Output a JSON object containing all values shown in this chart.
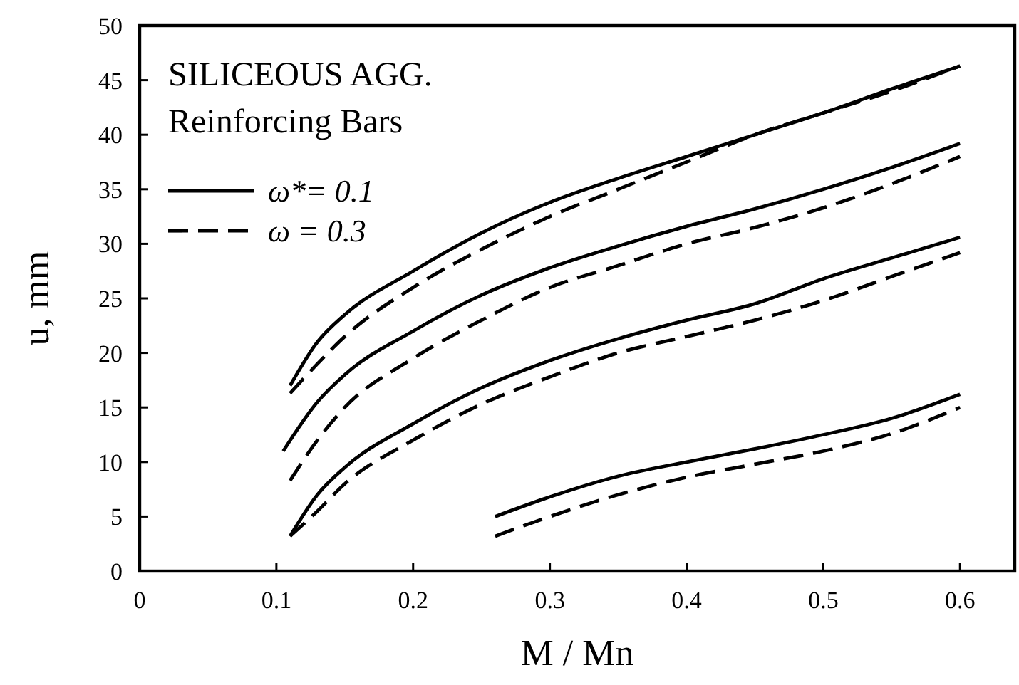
{
  "chart_data": {
    "type": "line",
    "xlabel": "M / Mn",
    "ylabel": "u, mm",
    "xlim": [
      0,
      0.64
    ],
    "ylim": [
      0,
      50
    ],
    "xticks": [
      0,
      0.1,
      0.2,
      0.3,
      0.4,
      0.5,
      0.6
    ],
    "yticks": [
      0,
      5,
      10,
      15,
      20,
      25,
      30,
      35,
      40,
      45,
      50
    ],
    "grid": false,
    "legend": "top left",
    "annotations": [
      "SILICEOUS AGG.",
      "Reinforcing Bars"
    ],
    "series": [
      {
        "name": "ω*= 0.1",
        "color": "#000000",
        "line_style": "solid",
        "x": [
          0.11,
          0.13,
          0.15,
          0.2,
          0.25,
          0.3,
          0.35,
          0.4,
          0.45,
          0.5,
          0.55,
          0.6
        ],
        "values": [
          17,
          21,
          23.5,
          27.5,
          31,
          33.8,
          36,
          38,
          40,
          42,
          44.2,
          46.3
        ]
      },
      {
        "name": "ω = 0.3",
        "color": "#000000",
        "line_style": "dashed",
        "x": [
          0.11,
          0.13,
          0.15,
          0.2,
          0.25,
          0.3,
          0.35,
          0.4,
          0.45,
          0.5,
          0.55,
          0.6
        ],
        "values": [
          16.3,
          19,
          21.5,
          26,
          29.5,
          32.5,
          35,
          37.5,
          40,
          42,
          44,
          46.3
        ]
      },
      {
        "color": "#000000",
        "line_style": "solid",
        "x": [
          0.105,
          0.13,
          0.15,
          0.2,
          0.25,
          0.3,
          0.35,
          0.4,
          0.45,
          0.5,
          0.55,
          0.6
        ],
        "values": [
          11,
          15.5,
          18,
          22,
          25.3,
          27.8,
          29.8,
          31.6,
          33.2,
          35,
          37,
          39.2
        ]
      },
      {
        "color": "#000000",
        "line_style": "dashed",
        "x": [
          0.11,
          0.13,
          0.15,
          0.2,
          0.25,
          0.3,
          0.35,
          0.4,
          0.45,
          0.5,
          0.55,
          0.6
        ],
        "values": [
          8.3,
          12,
          15,
          19.5,
          23,
          26,
          28,
          30,
          31.5,
          33.3,
          35.5,
          38
        ]
      },
      {
        "color": "#000000",
        "line_style": "solid",
        "x": [
          0.11,
          0.13,
          0.15,
          0.2,
          0.25,
          0.3,
          0.35,
          0.4,
          0.45,
          0.5,
          0.55,
          0.6
        ],
        "values": [
          3.2,
          7,
          9.5,
          13.5,
          16.8,
          19.3,
          21.3,
          23,
          24.5,
          26.8,
          28.7,
          30.6
        ]
      },
      {
        "color": "#000000",
        "line_style": "dashed",
        "x": [
          0.11,
          0.13,
          0.15,
          0.2,
          0.25,
          0.3,
          0.35,
          0.4,
          0.45,
          0.5,
          0.55,
          0.6
        ],
        "values": [
          3.2,
          5.5,
          8,
          12,
          15.3,
          17.8,
          20,
          21.5,
          23,
          24.8,
          27,
          29.2
        ]
      },
      {
        "color": "#000000",
        "line_style": "solid",
        "x": [
          0.26,
          0.3,
          0.35,
          0.4,
          0.45,
          0.5,
          0.55,
          0.6
        ],
        "values": [
          5,
          6.8,
          8.7,
          10,
          11.2,
          12.5,
          14,
          16.2
        ]
      },
      {
        "color": "#000000",
        "line_style": "dashed",
        "x": [
          0.26,
          0.3,
          0.35,
          0.4,
          0.45,
          0.5,
          0.55,
          0.6
        ],
        "values": [
          3.2,
          5,
          7,
          8.6,
          9.8,
          11,
          12.6,
          15
        ]
      }
    ]
  }
}
